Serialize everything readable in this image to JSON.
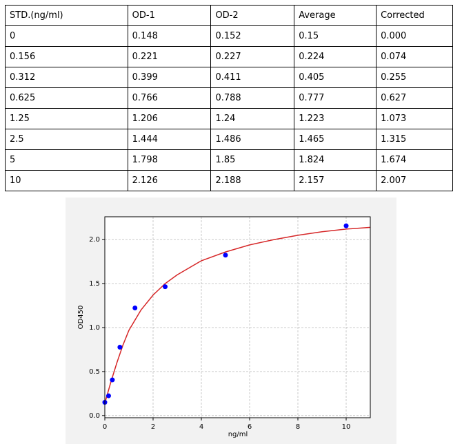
{
  "table": {
    "header": [
      "STD.(ng/ml)",
      "OD-1",
      "OD-2",
      "Average",
      "Corrected"
    ],
    "rows": [
      [
        "0",
        "0.148",
        "0.152",
        "0.15",
        "0.000"
      ],
      [
        "0.156",
        "0.221",
        "0.227",
        "0.224",
        "0.074"
      ],
      [
        "0.312",
        "0.399",
        "0.411",
        "0.405",
        "0.255"
      ],
      [
        "0.625",
        "0.766",
        "0.788",
        "0.777",
        "0.627"
      ],
      [
        "1.25",
        "1.206",
        "1.24",
        "1.223",
        "1.073"
      ],
      [
        "2.5",
        "1.444",
        "1.486",
        "1.465",
        "1.315"
      ],
      [
        "5",
        "1.798",
        "1.85",
        "1.824",
        "1.674"
      ],
      [
        "10",
        "2.126",
        "2.188",
        "2.157",
        "2.007"
      ]
    ]
  },
  "chart_data": {
    "type": "scatter",
    "xlabel": "ng/ml",
    "ylabel": "OD450",
    "xlim": [
      0,
      11
    ],
    "ylim": [
      -0.025,
      2.26
    ],
    "xticks": [
      0,
      2,
      4,
      6,
      8,
      10
    ],
    "yticks": [
      {
        "value": 0,
        "label": "0.0"
      },
      {
        "value": 0.5,
        "label": "0.5"
      },
      {
        "value": 1,
        "label": "1.0"
      },
      {
        "value": 1.5,
        "label": "1.5"
      },
      {
        "value": 2,
        "label": "2.0"
      }
    ],
    "grid": true,
    "series": [
      {
        "type": "scatter",
        "color": "#0000ff",
        "x": [
          0,
          0.156,
          0.312,
          0.625,
          1.25,
          2.5,
          5,
          10
        ],
        "values": [
          0.15,
          0.224,
          0.405,
          0.777,
          1.223,
          1.465,
          1.824,
          2.157
        ]
      },
      {
        "type": "line",
        "color": "#d62728",
        "x": [
          0,
          0.25,
          0.5,
          0.75,
          1,
          1.5,
          2,
          2.5,
          3,
          4,
          5,
          6,
          7,
          8,
          9,
          10,
          11
        ],
        "values": [
          0.14,
          0.38,
          0.6,
          0.8,
          0.97,
          1.2,
          1.37,
          1.5,
          1.6,
          1.76,
          1.86,
          1.94,
          2.0,
          2.05,
          2.09,
          2.12,
          2.14
        ]
      }
    ]
  }
}
